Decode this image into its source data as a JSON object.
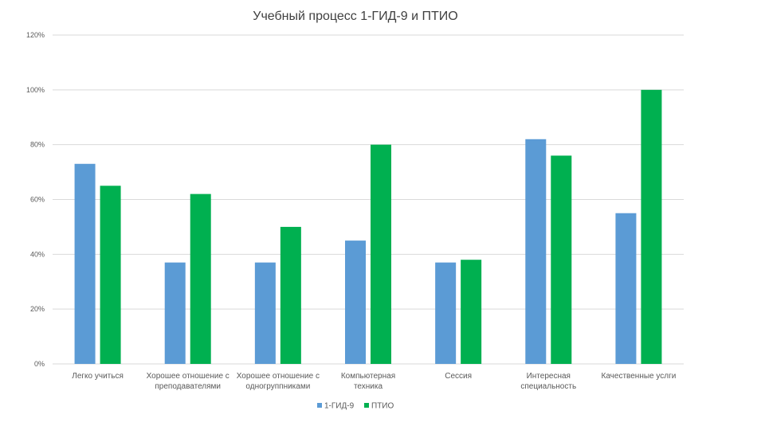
{
  "chart_data": {
    "type": "bar",
    "title": "Учебный процесс 1-ГИД-9 и ПТИО",
    "xlabel": "",
    "ylabel": "",
    "ylim": [
      0,
      1.2
    ],
    "yticks": [
      "0%",
      "20%",
      "40%",
      "60%",
      "80%",
      "100%",
      "120%"
    ],
    "grid": true,
    "legend_position": "bottom",
    "categories": [
      [
        "Легко учиться"
      ],
      [
        "Хорошее отношение с",
        "преподавателями"
      ],
      [
        "Хорошее отношение с",
        "одногруппниками"
      ],
      [
        "Компьютерная",
        "техника"
      ],
      [
        "Сессия"
      ],
      [
        "Интересная",
        "специальность"
      ],
      [
        "Качественные услги"
      ]
    ],
    "series": [
      {
        "name": "1-ГИД-9",
        "color": "#5b9bd5",
        "values": [
          0.73,
          0.37,
          0.37,
          0.45,
          0.37,
          0.82,
          0.55
        ]
      },
      {
        "name": "ПТИО",
        "color": "#00b050",
        "values": [
          0.65,
          0.62,
          0.5,
          0.8,
          0.38,
          0.76,
          1.0
        ]
      }
    ]
  }
}
